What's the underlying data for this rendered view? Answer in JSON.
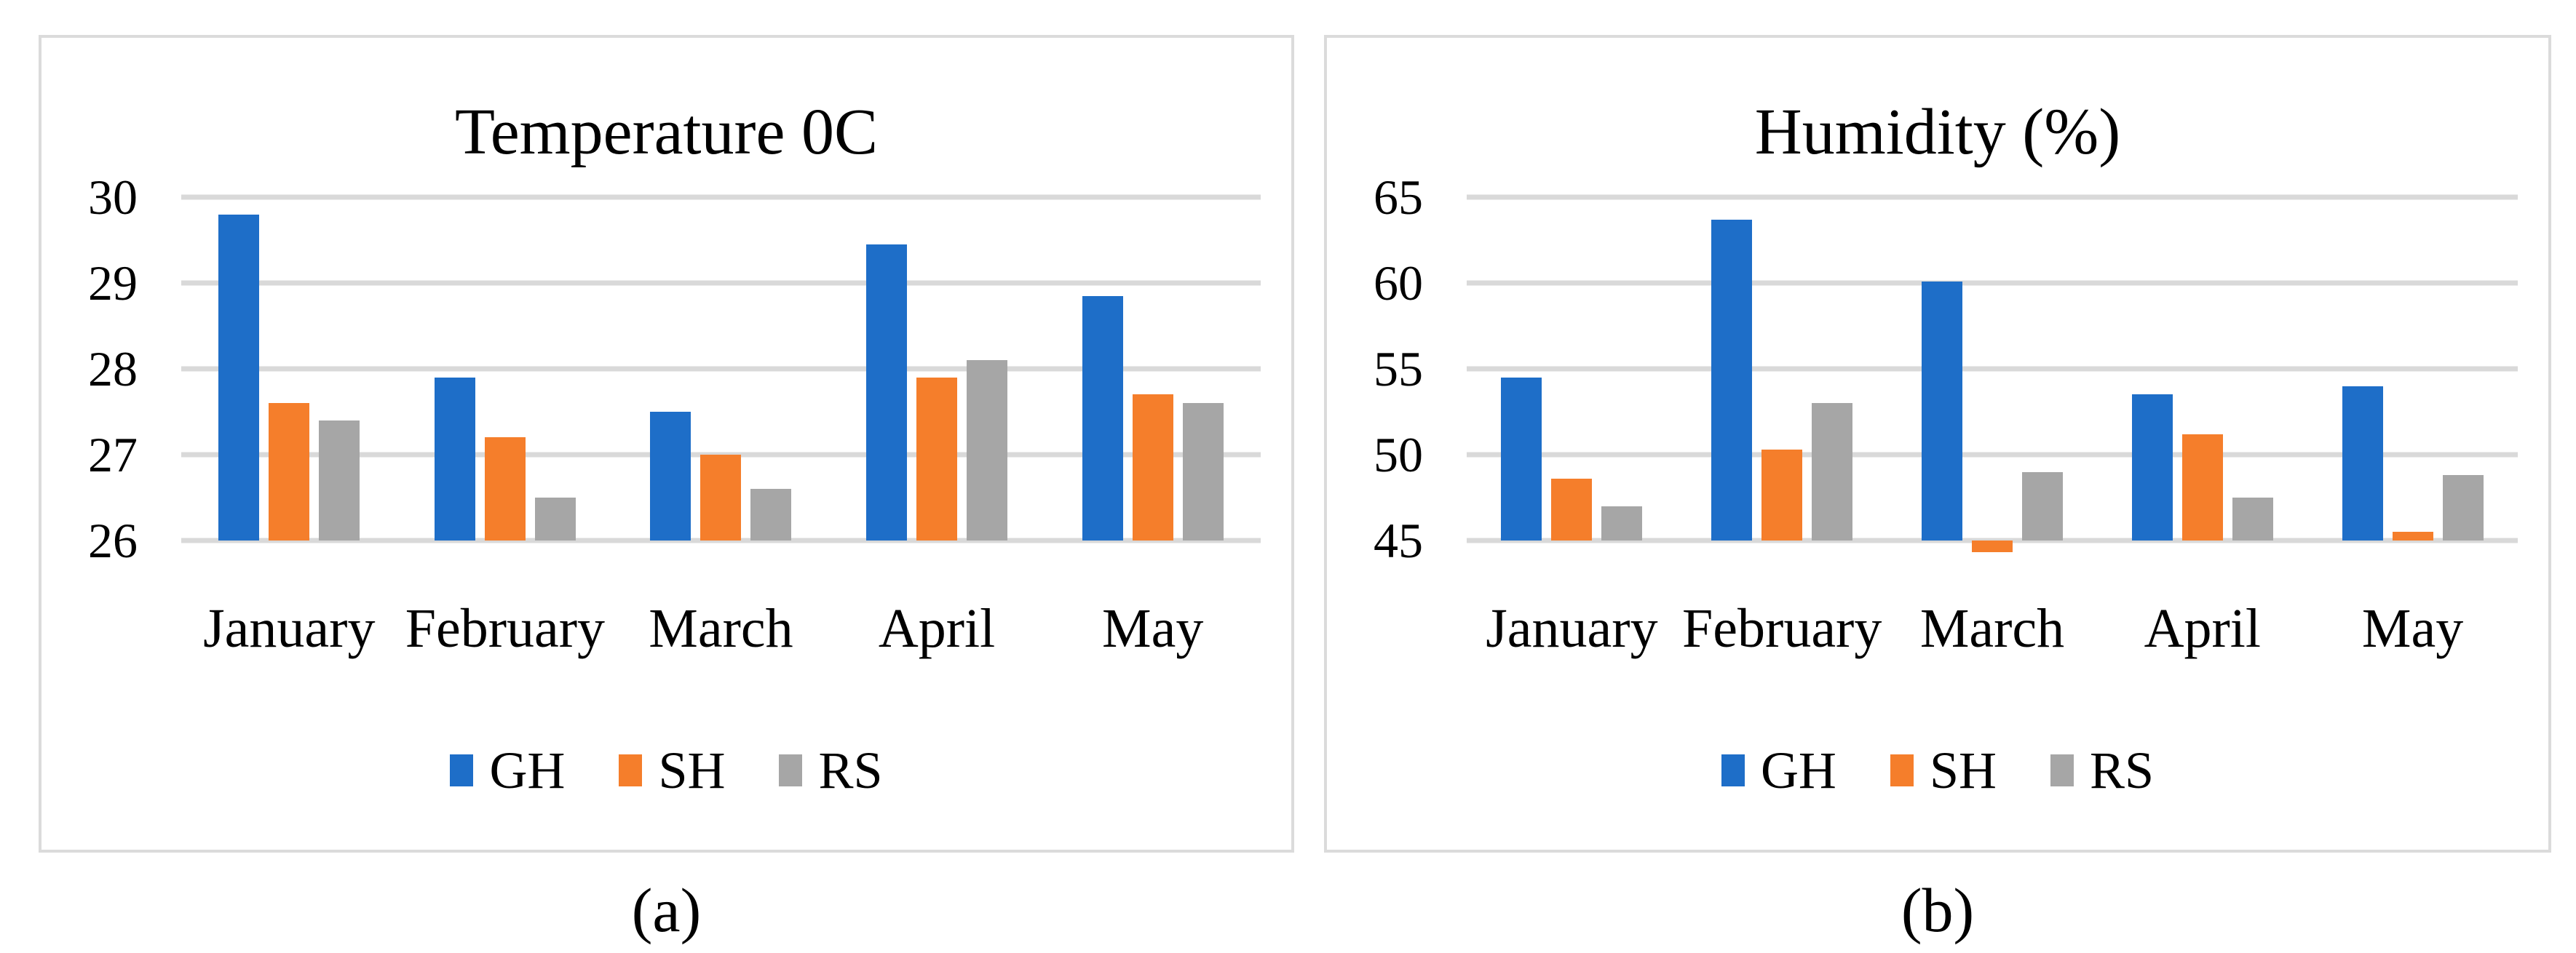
{
  "figure": {
    "colors": {
      "gh_blue": "#1e6ec8",
      "sh_orange": "#f57e2b",
      "rs_gray": "#a6a6a6",
      "gridline": "#d9d9d9",
      "panel_border": "#dbdbdb",
      "text": "#000000"
    },
    "captions": {
      "a": "(a)",
      "b": "(b)"
    }
  },
  "chart_data": [
    {
      "type": "bar",
      "title": "Temperature 0C",
      "caption": "(a)",
      "categories": [
        "January",
        "February",
        "March",
        "April",
        "May"
      ],
      "series": [
        {
          "name": "GH",
          "color": "#1e6ec8",
          "values": [
            29.8,
            27.9,
            27.5,
            29.45,
            28.85
          ]
        },
        {
          "name": "SH",
          "color": "#f57e2b",
          "values": [
            27.6,
            27.2,
            27.0,
            27.9,
            27.7
          ]
        },
        {
          "name": "RS",
          "color": "#a6a6a6",
          "values": [
            27.4,
            26.5,
            26.6,
            28.1,
            27.6
          ]
        }
      ],
      "xlabel": "",
      "ylabel": "",
      "ylim": [
        26,
        30
      ],
      "yticks": [
        26,
        27,
        28,
        29,
        30
      ],
      "grid": true,
      "legend_position": "bottom"
    },
    {
      "type": "bar",
      "title": "Humidity (%)",
      "caption": "(b)",
      "categories": [
        "January",
        "February",
        "March",
        "April",
        "May"
      ],
      "series": [
        {
          "name": "GH",
          "color": "#1e6ec8",
          "values": [
            54.5,
            63.7,
            60.1,
            53.5,
            54.0
          ]
        },
        {
          "name": "SH",
          "color": "#f57e2b",
          "values": [
            48.6,
            50.3,
            44.9,
            51.2,
            45.5
          ]
        },
        {
          "name": "RS",
          "color": "#a6a6a6",
          "values": [
            47.0,
            53.0,
            49.0,
            47.5,
            48.8
          ]
        }
      ],
      "xlabel": "",
      "ylabel": "",
      "ylim": [
        45,
        65
      ],
      "yticks": [
        45,
        50,
        55,
        60,
        65
      ],
      "grid": true,
      "legend_position": "bottom"
    }
  ]
}
